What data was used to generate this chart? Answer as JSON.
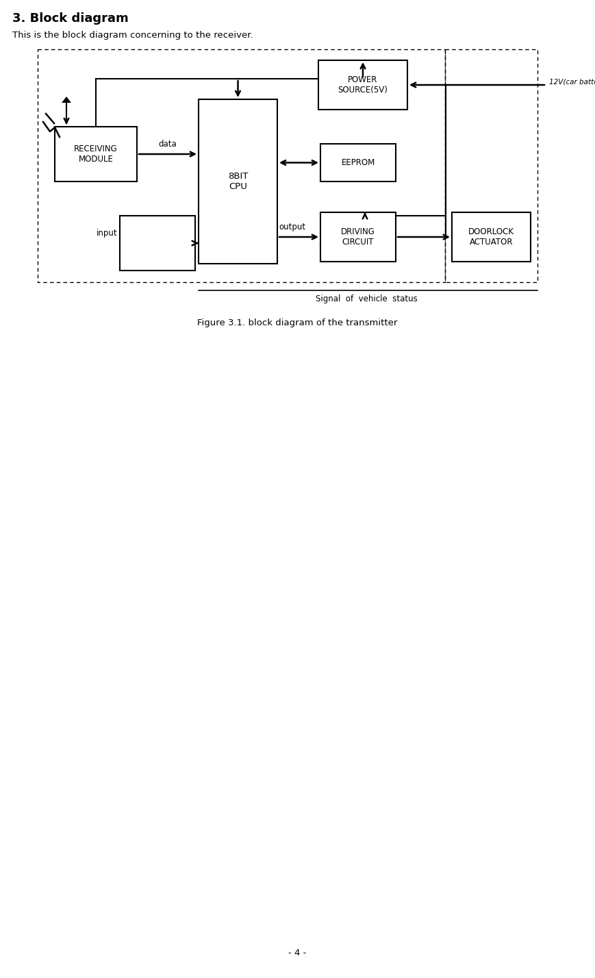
{
  "title": "3. Block diagram",
  "subtitle": "This is the block diagram concerning to the receiver.",
  "caption": "Figure 3.1. block diagram of the transmitter",
  "page_number": "- 4 -",
  "fig_width": 8.69,
  "fig_height": 14.28,
  "dpi": 100
}
